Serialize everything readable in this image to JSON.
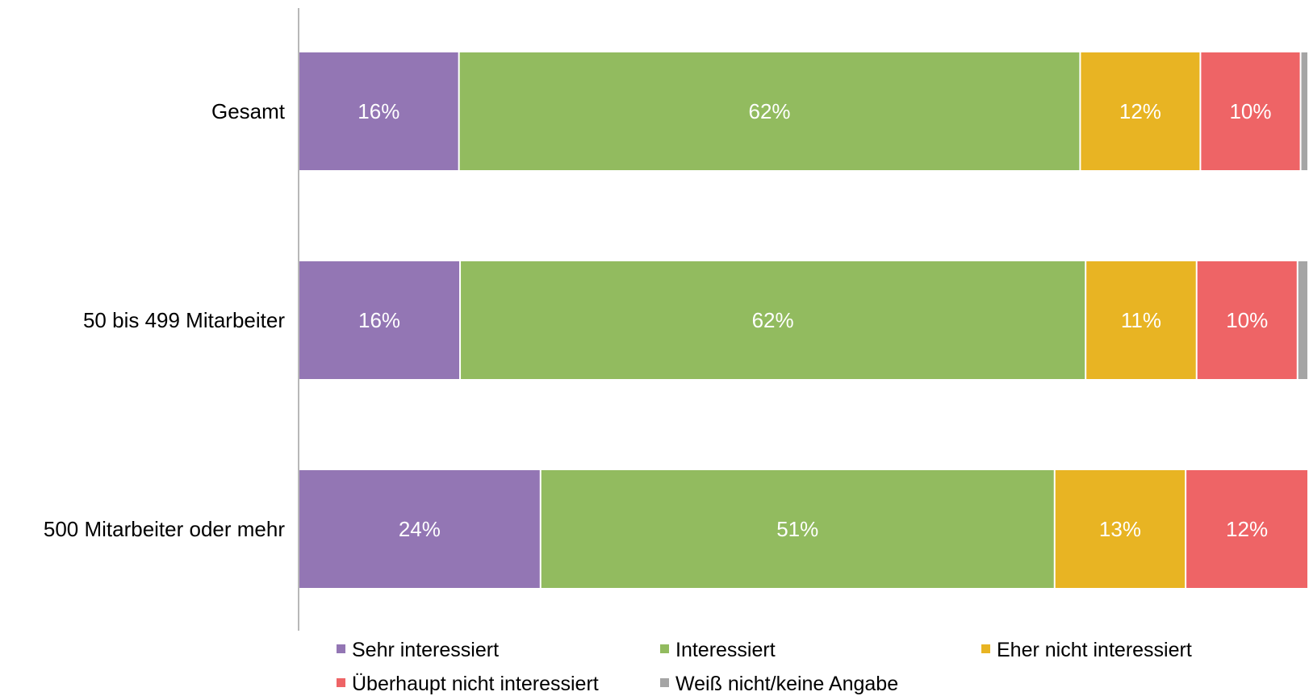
{
  "chart_data": {
    "type": "bar",
    "orientation": "horizontal",
    "stacked": "percent",
    "categories": [
      "Gesamt",
      "50 bis 499 Mitarbeiter",
      "500 Mitarbeiter oder mehr"
    ],
    "series": [
      {
        "name": "Sehr interessiert",
        "values": [
          16,
          16,
          24
        ],
        "labels": [
          "16%",
          "16%",
          "24%"
        ],
        "color": "#9376b4"
      },
      {
        "name": "Interessiert",
        "values": [
          62,
          62,
          51
        ],
        "labels": [
          "62%",
          "62%",
          "51%"
        ],
        "color": "#92bb5f"
      },
      {
        "name": "Eher nicht interessiert",
        "values": [
          12,
          11,
          13
        ],
        "labels": [
          "12%",
          "11%",
          "13%"
        ],
        "color": "#e8b423"
      },
      {
        "name": "Überhaupt nicht interessiert",
        "values": [
          10,
          10,
          12
        ],
        "labels": [
          "10%",
          "10%",
          "12%"
        ],
        "color": "#ee6466"
      },
      {
        "name": "Weiß nicht/keine Angabe",
        "values": [
          0.6,
          0.9,
          0
        ],
        "labels": [
          "",
          "",
          ""
        ],
        "color": "#a5a5a5"
      }
    ],
    "xlim": [
      0,
      100
    ],
    "grid": false,
    "legend_position": "bottom"
  }
}
